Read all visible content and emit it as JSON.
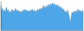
{
  "chart_data": {
    "type": "area",
    "values": [
      72,
      55,
      62,
      48,
      58,
      52,
      65,
      50,
      60,
      45,
      55,
      48,
      60,
      52,
      58,
      50,
      62,
      54,
      58,
      50,
      56,
      48,
      54,
      50,
      58,
      52,
      60,
      54,
      58,
      52,
      56,
      50,
      58,
      54,
      60,
      52,
      58,
      50,
      56,
      52,
      60,
      54,
      62,
      56,
      64,
      58,
      70,
      62,
      68,
      58,
      72,
      64,
      74,
      66,
      76,
      68,
      78,
      70,
      76,
      66,
      74,
      64,
      72,
      62,
      68,
      58,
      65,
      55,
      60,
      50,
      55,
      42,
      58,
      48,
      35,
      20,
      38,
      52,
      46,
      55,
      48,
      56,
      50,
      60,
      52,
      58,
      50,
      56,
      52,
      58
    ],
    "color": "#4da6e8",
    "xlim": [
      0,
      89
    ],
    "ylim": [
      0,
      84.24
    ],
    "tick_labels": false
  }
}
